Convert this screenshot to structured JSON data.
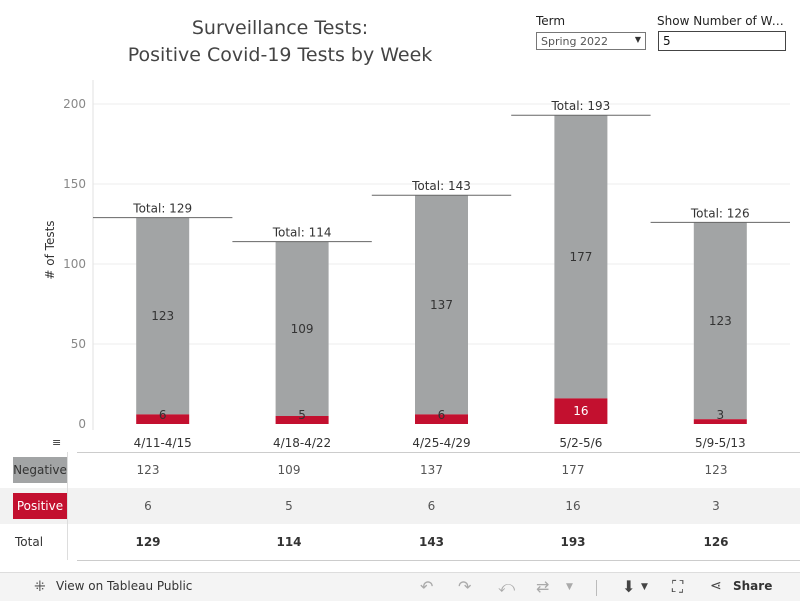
{
  "title_line1": "Surveillance Tests:",
  "title_line2": "Positive Covid-19 Tests by Week",
  "controls": {
    "term_label": "Term",
    "term_value": "Spring 2022",
    "weeks_label": "Show Number of Weeks",
    "weeks_value": "5"
  },
  "colors": {
    "negative": "#a2a4a5",
    "positive": "#c3102f"
  },
  "chart_data": {
    "type": "bar",
    "stacked": true,
    "ylabel": "# of Tests",
    "ylim": [
      0,
      200
    ],
    "yticks": [
      0,
      50,
      100,
      150,
      200
    ],
    "categories": [
      "4/11-4/15",
      "4/18-4/22",
      "4/25-4/29",
      "5/2-5/6",
      "5/9-5/13"
    ],
    "series": [
      {
        "name": "Positive",
        "values": [
          6,
          5,
          6,
          16,
          3
        ]
      },
      {
        "name": "Negative",
        "values": [
          123,
          109,
          137,
          177,
          123
        ]
      }
    ],
    "totals": [
      129,
      114,
      143,
      193,
      126
    ],
    "total_label_prefix": "Total: "
  },
  "table": {
    "rows": [
      {
        "label": "Negative",
        "values": [
          "123",
          "109",
          "137",
          "177",
          "123"
        ]
      },
      {
        "label": "Positive",
        "values": [
          "6",
          "5",
          "6",
          "16",
          "3"
        ]
      },
      {
        "label": "Total",
        "values": [
          "129",
          "114",
          "143",
          "193",
          "126"
        ]
      }
    ]
  },
  "footer": {
    "view_label": "View on Tableau Public",
    "share_label": "Share"
  }
}
